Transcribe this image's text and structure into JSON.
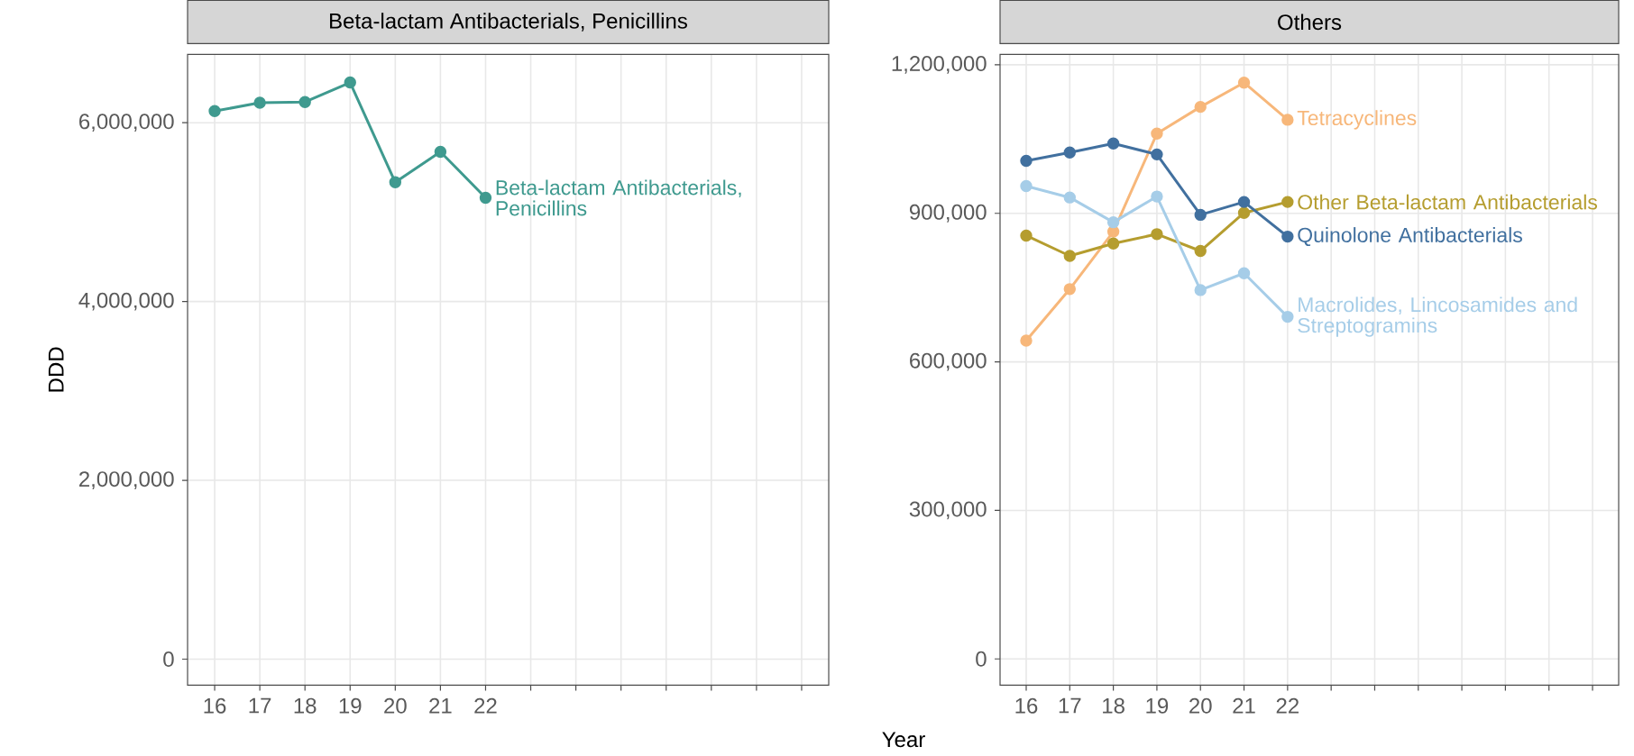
{
  "chart_data": [
    {
      "type": "line",
      "title": "Beta-lactam Antibacterials, Penicillins",
      "xlabel": "Year",
      "ylabel": "DDD",
      "categories": [
        "16",
        "17",
        "18",
        "19",
        "20",
        "21",
        "22",
        null,
        null,
        null,
        null,
        null,
        null,
        null
      ],
      "series": [
        {
          "name": "Beta-lactam Antibacterials, Penicillins",
          "color": "#3f9a8f",
          "values": [
            6130000,
            6223000,
            6232000,
            6450000,
            5334000,
            5675000,
            5161000,
            null,
            null,
            null,
            null,
            null,
            null,
            null
          ]
        }
      ],
      "ylim": [
        -291000,
        6764000
      ],
      "yticks": [
        {
          "value": 0,
          "label": "0"
        },
        {
          "value": 2000000,
          "label": "2,000,000"
        },
        {
          "value": 4000000,
          "label": "4,000,000"
        },
        {
          "value": 6000000,
          "label": "6,000,000"
        }
      ],
      "grid": true,
      "marker": "circle"
    },
    {
      "type": "line",
      "title": "Others",
      "categories": [
        "16",
        "17",
        "18",
        "19",
        "20",
        "21",
        "22",
        null,
        null,
        null,
        null,
        null,
        null,
        null
      ],
      "series": [
        {
          "name": "Tetracyclines",
          "color": "#f7b77a",
          "values": [
            643000,
            747000,
            863000,
            1061000,
            1115000,
            1164000,
            1089000,
            null,
            null,
            null,
            null,
            null,
            null,
            null
          ]
        },
        {
          "name": "Other Beta-lactam Antibacterials",
          "color": "#b59d2f",
          "values": [
            855000,
            814000,
            839000,
            858000,
            824000,
            901000,
            923000,
            null,
            null,
            null,
            null,
            null,
            null,
            null
          ]
        },
        {
          "name": "Quinolone Antibacterials",
          "color": "#41709f",
          "values": [
            1006000,
            1023000,
            1041000,
            1019000,
            897000,
            923000,
            853000,
            null,
            null,
            null,
            null,
            null,
            null,
            null
          ]
        },
        {
          "name": "Macrolides, Lincosamides and Streptogramins",
          "color": "#a6cde8",
          "values": [
            955000,
            932000,
            882000,
            934000,
            745000,
            779000,
            691000,
            null,
            null,
            null,
            null,
            null,
            null,
            null
          ]
        }
      ],
      "ylim": [
        -53000,
        1221000
      ],
      "yticks": [
        {
          "value": 0,
          "label": "0"
        },
        {
          "value": 300000,
          "label": "300,000"
        },
        {
          "value": 600000,
          "label": "600,000"
        },
        {
          "value": 900000,
          "label": "900,000"
        },
        {
          "value": 1200000,
          "label": "1,200,000"
        }
      ],
      "grid": true,
      "marker": "circle"
    }
  ]
}
